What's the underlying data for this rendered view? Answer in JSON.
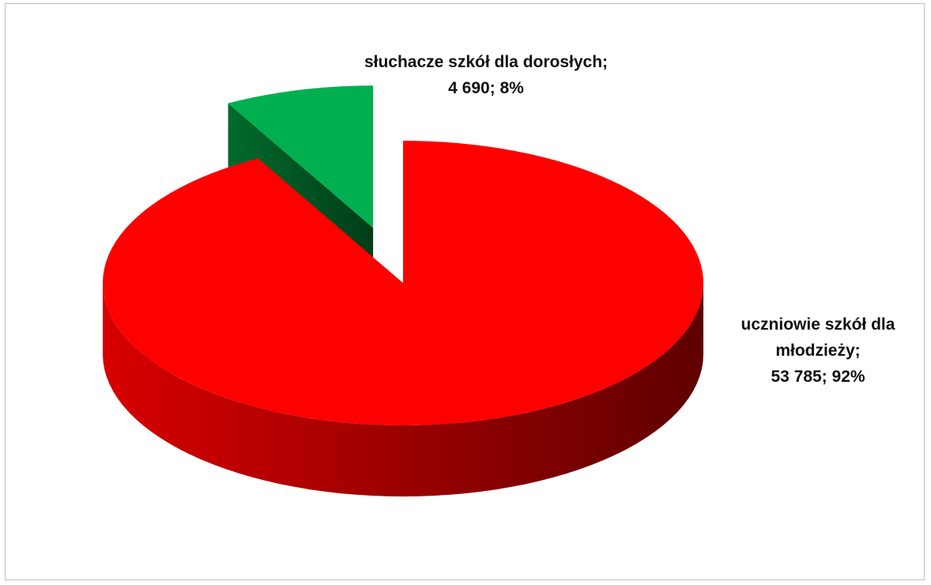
{
  "chart_data": {
    "type": "pie3d",
    "categories": [
      "uczniowie szkół dla młodzieży;",
      "słuchacze szkół dla dorosłych;"
    ],
    "values": [
      53785,
      4690
    ],
    "value_labels": [
      "53 785; 92%",
      "4 690; 8%"
    ],
    "colors": [
      "#ff0000",
      "#00b050"
    ]
  }
}
